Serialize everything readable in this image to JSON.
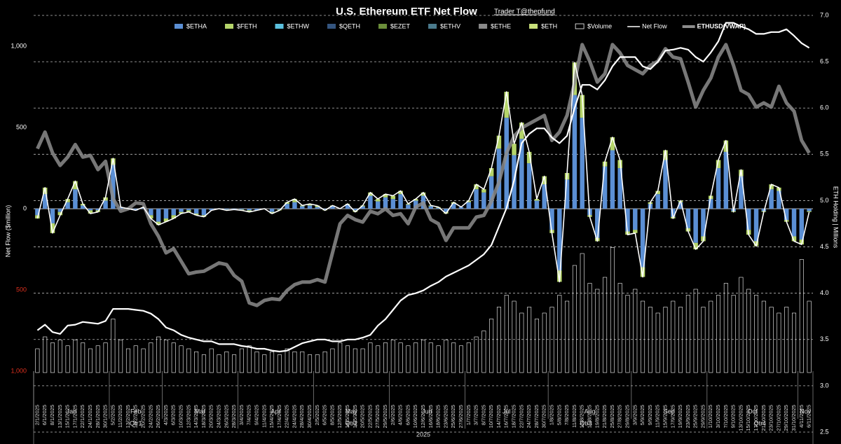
{
  "chart_data": {
    "type": "combo",
    "title": "U.S. Ethereum ETF Net Flow",
    "subtitle": "Trader T@thepfund",
    "y_label": "Net Flow ($million)",
    "y2_label": "ETH Holding | Millions",
    "categories": [
      "2/1/2025",
      "6/1/2025",
      "8/1/2025",
      "13/1/2025",
      "15/1/2025",
      "17/1/2025",
      "22/1/2025",
      "24/1/2025",
      "28/1/2025",
      "30/1/2025",
      "5/2/2025",
      "11/2/2025",
      "13/2/2025",
      "18/2/2025",
      "20/2/2025",
      "24/2/2025",
      "26/2/2025",
      "4/3/2025",
      "6/3/2025",
      "10/3/2025",
      "12/3/2025",
      "14/3/2025",
      "18/3/2025",
      "20/3/2025",
      "24/3/2025",
      "26/3/2025",
      "28/3/2025",
      "3/4/2025",
      "7/4/2025",
      "9/4/2025",
      "11/4/2025",
      "15/4/2025",
      "17/4/2025",
      "22/4/2025",
      "24/4/2025",
      "28/4/2025",
      "30/4/2025",
      "2/5/2025",
      "6/5/2025",
      "8/5/2025",
      "12/5/2025",
      "14/5/2025",
      "16/5/2025",
      "20/5/2025",
      "22/5/2025",
      "27/5/2025",
      "29/5/2025",
      "2/6/2025",
      "4/6/2025",
      "6/6/2025",
      "10/6/2025",
      "12/6/2025",
      "16/6/2025",
      "18/6/2025",
      "23/6/2025",
      "25/6/2025",
      "27/6/2025",
      "1/7/2025",
      "3/7/2025",
      "8/7/2025",
      "10/7/2025",
      "14/7/2025",
      "16/7/2025",
      "18/7/2025",
      "22/7/2025",
      "24/7/2025",
      "28/7/2025",
      "30/7/2025",
      "1/8/2025",
      "5/8/2025",
      "7/8/2025",
      "11/8/2025",
      "13/8/2025",
      "15/8/2025",
      "19/8/2025",
      "21/8/2025",
      "25/8/2025",
      "27/8/2025",
      "29/8/2025",
      "3/9/2025",
      "5/9/2025",
      "9/9/2025",
      "11/9/2025",
      "15/9/2025",
      "17/9/2025",
      "19/9/2025",
      "23/9/2025",
      "25/9/2025",
      "29/9/2025",
      "1/10/2025",
      "3/10/2025",
      "7/10/2025",
      "9/10/2025",
      "13/10/2025",
      "15/10/2025",
      "17/10/2025",
      "21/10/2025",
      "23/10/2025",
      "27/10/2025",
      "29/10/2025",
      "31/10/2025",
      "4/11/2025",
      "6/11/2025"
    ],
    "month_labels": [
      "Jan",
      "Feb",
      "Mar",
      "Apr",
      "May",
      "Jun",
      "Jul",
      "Aug",
      "Sep",
      "Oct",
      "Nov"
    ],
    "quarter_labels": [
      "Qtr1",
      "Qtr2",
      "Qtr3",
      "Qtr4"
    ],
    "year_label": "2025",
    "series": [
      {
        "name": "$ETHA",
        "color": "#5b8fd4",
        "kind": "bar",
        "values": [
          -40,
          90,
          -90,
          -20,
          40,
          120,
          20,
          -10,
          -10,
          50,
          270,
          10,
          0,
          -10,
          5,
          -40,
          -80,
          -60,
          -40,
          -20,
          -10,
          -30,
          -40,
          -10,
          0,
          -5,
          -5,
          -5,
          -10,
          -10,
          0,
          -20,
          -5,
          30,
          40,
          15,
          20,
          10,
          -5,
          15,
          0,
          25,
          -10,
          15,
          80,
          45,
          70,
          60,
          90,
          25,
          50,
          80,
          15,
          5,
          -20,
          30,
          10,
          40,
          120,
          100,
          200,
          370,
          560,
          330,
          430,
          280,
          50,
          150,
          -130,
          -380,
          180,
          700,
          560,
          -40,
          -180,
          260,
          360,
          250,
          -140,
          -130,
          -360,
          30,
          90,
          300,
          -50,
          40,
          -120,
          -210,
          -170,
          60,
          250,
          350,
          -15,
          200,
          -130,
          -200,
          -15,
          120,
          110,
          -70,
          -170,
          -190,
          -15
        ]
      },
      {
        "name": "$FETH",
        "color": "#b5d56a",
        "kind": "bar",
        "values": [
          -20,
          40,
          -60,
          -20,
          20,
          50,
          10,
          -20,
          -10,
          20,
          40,
          0,
          0,
          0,
          5,
          -20,
          -20,
          -20,
          -20,
          -10,
          -10,
          -10,
          -10,
          0,
          0,
          -5,
          0,
          -5,
          -10,
          0,
          0,
          -10,
          -5,
          10,
          20,
          5,
          10,
          10,
          -5,
          5,
          0,
          5,
          -10,
          5,
          20,
          15,
          20,
          20,
          20,
          5,
          10,
          20,
          5,
          5,
          -10,
          10,
          0,
          10,
          30,
          20,
          50,
          80,
          160,
          70,
          100,
          70,
          10,
          50,
          -20,
          -70,
          40,
          200,
          140,
          -10,
          -20,
          30,
          80,
          50,
          -20,
          -20,
          -60,
          10,
          20,
          60,
          -10,
          10,
          -20,
          -40,
          -30,
          20,
          50,
          70,
          -5,
          40,
          -30,
          -30,
          -5,
          30,
          20,
          -10,
          -30,
          -30,
          -5
        ]
      },
      {
        "name": "$ETHW",
        "color": "#5bc0de",
        "kind": "bar"
      },
      {
        "name": "$QETH",
        "color": "#34557f",
        "kind": "bar"
      },
      {
        "name": "$EZET",
        "color": "#6b8e3a",
        "kind": "bar"
      },
      {
        "name": "$ETHV",
        "color": "#4a7a8c",
        "kind": "bar"
      },
      {
        "name": "$ETHE",
        "color": "#8a8a8a",
        "kind": "bar"
      },
      {
        "name": "$ETH",
        "color": "#c8e07a",
        "kind": "bar"
      },
      {
        "name": "$Volume",
        "color": "#ffffff",
        "kind": "outline-bar",
        "axis": "y3",
        "values": [
          400,
          600,
          500,
          550,
          450,
          550,
          500,
          400,
          450,
          500,
          900,
          550,
          400,
          450,
          400,
          500,
          600,
          550,
          500,
          450,
          400,
          350,
          300,
          400,
          300,
          350,
          300,
          400,
          450,
          350,
          300,
          350,
          300,
          400,
          350,
          350,
          300,
          300,
          350,
          400,
          500,
          450,
          400,
          400,
          500,
          450,
          500,
          550,
          500,
          450,
          500,
          550,
          500,
          450,
          550,
          500,
          450,
          500,
          600,
          700,
          900,
          1100,
          1300,
          1200,
          1000,
          1100,
          900,
          1000,
          1100,
          1300,
          1200,
          1800,
          2000,
          1500,
          1400,
          1600,
          2100,
          1500,
          1300,
          1400,
          1200,
          1100,
          1000,
          1100,
          1200,
          1100,
          1300,
          1400,
          1100,
          1200,
          1300,
          1500,
          1300,
          1600,
          1400,
          1300,
          1200,
          1100,
          1000,
          1100,
          1000,
          1900,
          1200
        ]
      },
      {
        "name": "Net Flow",
        "color": "#ffffff",
        "kind": "line",
        "width": 1.6,
        "values": [
          -60,
          130,
          -150,
          -40,
          60,
          170,
          30,
          -30,
          -20,
          70,
          310,
          10,
          0,
          -10,
          10,
          -60,
          -100,
          -80,
          -60,
          -30,
          -20,
          -40,
          -50,
          -10,
          0,
          -10,
          -5,
          -10,
          -20,
          -10,
          0,
          -30,
          -10,
          40,
          60,
          20,
          30,
          20,
          -10,
          20,
          0,
          30,
          -20,
          20,
          100,
          60,
          90,
          80,
          110,
          30,
          60,
          100,
          20,
          10,
          -30,
          40,
          10,
          50,
          150,
          120,
          250,
          450,
          720,
          400,
          530,
          350,
          60,
          200,
          -150,
          -450,
          220,
          900,
          700,
          -50,
          -200,
          290,
          440,
          300,
          -160,
          -150,
          -420,
          40,
          110,
          360,
          -60,
          50,
          -140,
          -250,
          -200,
          80,
          300,
          420,
          -20,
          240,
          -160,
          -230,
          -20,
          150,
          130,
          -80,
          -200,
          -220,
          -20
        ]
      },
      {
        "name": "ETHUSD(VWAP)",
        "color": "#8c8c8c",
        "kind": "line",
        "width": 5,
        "axis": "y4",
        "values": [
          3400,
          3600,
          3350,
          3200,
          3300,
          3450,
          3300,
          3320,
          3150,
          3250,
          2800,
          2650,
          2680,
          2750,
          2740,
          2500,
          2350,
          2150,
          2200,
          2050,
          1900,
          1920,
          1930,
          1980,
          2030,
          2010,
          1880,
          1810,
          1550,
          1520,
          1580,
          1600,
          1590,
          1700,
          1770,
          1800,
          1800,
          1830,
          1800,
          2150,
          2500,
          2600,
          2550,
          2520,
          2650,
          2620,
          2680,
          2600,
          2620,
          2500,
          2700,
          2750,
          2550,
          2500,
          2300,
          2450,
          2450,
          2450,
          2580,
          2600,
          2770,
          3000,
          3350,
          3550,
          3650,
          3700,
          3750,
          3800,
          3500,
          3600,
          3800,
          4200,
          4650,
          4450,
          4200,
          4300,
          4650,
          4550,
          4400,
          4350,
          4300,
          4400,
          4450,
          4600,
          4500,
          4480,
          4200,
          3900,
          4100,
          4250,
          4500,
          4650,
          4400,
          4100,
          4050,
          3900,
          3950,
          3900,
          4150,
          3950,
          3850,
          3500,
          3350
        ]
      },
      {
        "color": "#ffffff",
        "kind": "line",
        "width": 2.2,
        "axis": "y2",
        "values": [
          3.6,
          3.66,
          3.58,
          3.56,
          3.65,
          3.66,
          3.69,
          3.68,
          3.67,
          3.7,
          3.83,
          3.83,
          3.83,
          3.82,
          3.81,
          3.78,
          3.72,
          3.63,
          3.6,
          3.55,
          3.52,
          3.5,
          3.48,
          3.48,
          3.45,
          3.45,
          3.45,
          3.43,
          3.42,
          3.4,
          3.4,
          3.38,
          3.37,
          3.38,
          3.42,
          3.46,
          3.48,
          3.5,
          3.5,
          3.48,
          3.48,
          3.5,
          3.5,
          3.52,
          3.55,
          3.65,
          3.72,
          3.82,
          3.92,
          3.98,
          4.0,
          4.03,
          4.08,
          4.12,
          4.18,
          4.22,
          4.26,
          4.3,
          4.36,
          4.42,
          4.52,
          4.72,
          4.92,
          5.22,
          5.62,
          5.72,
          5.78,
          5.78,
          5.68,
          5.62,
          5.7,
          6.0,
          6.25,
          6.25,
          6.2,
          6.3,
          6.45,
          6.55,
          6.55,
          6.55,
          6.45,
          6.42,
          6.5,
          6.62,
          6.63,
          6.65,
          6.63,
          6.55,
          6.5,
          6.6,
          6.72,
          6.92,
          6.92,
          6.88,
          6.85,
          6.8,
          6.8,
          6.82,
          6.82,
          6.85,
          6.78,
          6.7,
          6.65
        ]
      }
    ],
    "ylim": [
      -1375,
      1190
    ],
    "yticks": [
      {
        "value": 1000,
        "label": "1,000"
      },
      500,
      0,
      {
        "value": -500,
        "label": "500"
      },
      {
        "value": -1000,
        "label": "1,000"
      }
    ],
    "negative_tick_color": "#e0301e",
    "y2lim": [
      2.5,
      7.0
    ],
    "y2ticks": [
      2.5,
      {
        "value": 3,
        "label": "3.0"
      },
      3.5,
      {
        "value": 4,
        "label": "4.0"
      },
      4.5,
      {
        "value": 5,
        "label": "5.0"
      },
      5.5,
      {
        "value": 6,
        "label": "6.0"
      },
      6.5,
      {
        "value": 7,
        "label": "7.0"
      }
    ],
    "y3lim": [
      -1000,
      6000
    ],
    "y4lim": [
      0,
      5000
    ],
    "grid": true
  }
}
